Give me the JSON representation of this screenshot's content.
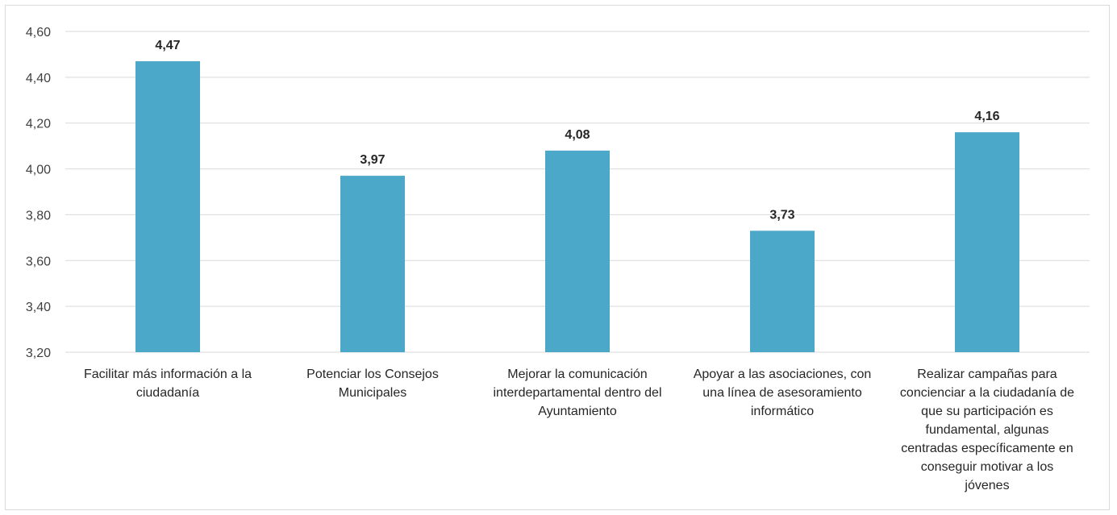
{
  "chart_data": {
    "type": "bar",
    "categories": [
      [
        "Facilitar más información a la",
        "ciudadanía"
      ],
      [
        "Potenciar los Consejos",
        "Municipales"
      ],
      [
        "Mejorar la comunicación",
        "interdepartamental dentro del",
        "Ayuntamiento"
      ],
      [
        "Apoyar a las asociaciones, con",
        "una línea de asesoramiento",
        "informático"
      ],
      [
        "Realizar campañas para",
        "concienciar a la ciudadanía de",
        "que su participación es",
        "fundamental, algunas",
        "centradas específicamente en",
        "conseguir motivar a los",
        "jóvenes"
      ]
    ],
    "values": [
      4.47,
      3.97,
      4.08,
      3.73,
      4.16
    ],
    "data_labels": [
      "4,47",
      "3,97",
      "4,08",
      "3,73",
      "4,16"
    ],
    "y_ticks": [
      "3,20",
      "3,40",
      "3,60",
      "3,80",
      "4,00",
      "4,20",
      "4,40",
      "4,60"
    ],
    "ylim": [
      3.2,
      4.6
    ],
    "y_step": 0.2,
    "grid": true,
    "bar_color": "#4BA8C8",
    "grid_color": "#d9d9d9",
    "title": "",
    "xlabel": "",
    "ylabel": ""
  }
}
